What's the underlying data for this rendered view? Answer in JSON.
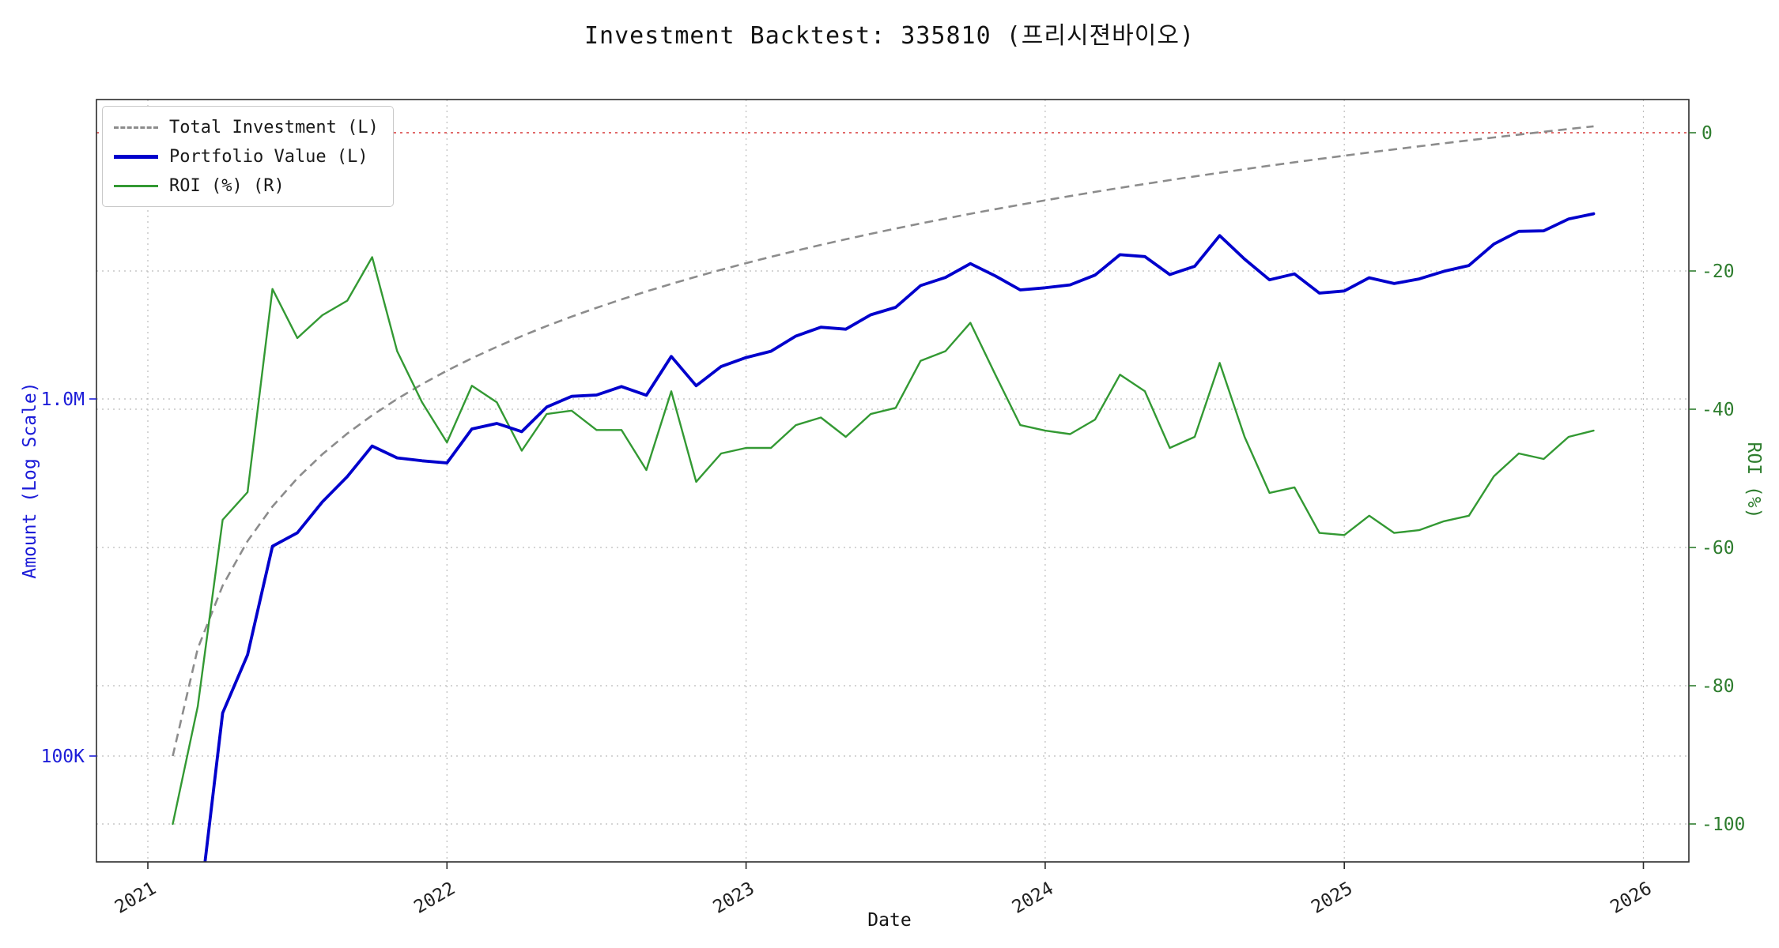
{
  "chart": {
    "title": "Investment Backtest: 335810 (프리시젼바이오)",
    "xlabel": "Date",
    "ylabel_left": "Amount (Log Scale)",
    "ylabel_right": "ROI (%)",
    "legend": [
      {
        "label": "Total Investment (L)",
        "style": "dashed",
        "color": "#8c8c8c"
      },
      {
        "label": "Portfolio Value (L)",
        "style": "solid",
        "color": "#0000cc"
      },
      {
        "label": "ROI (%) (R)",
        "style": "solid",
        "color": "#339933"
      }
    ],
    "x_ticks": [
      "2021",
      "2022",
      "2023",
      "2024",
      "2025",
      "2026"
    ],
    "amount_ticks": [
      {
        "label": "1.0M",
        "value": 1000000
      },
      {
        "label": "100K",
        "value": 100000
      }
    ],
    "roi_ticks": [
      {
        "label": "0",
        "value": 0
      },
      {
        "label": "-20",
        "value": -20
      },
      {
        "label": "-40",
        "value": -40
      },
      {
        "label": "-60",
        "value": -60
      },
      {
        "label": "-80",
        "value": -80
      },
      {
        "label": "-100",
        "value": -100
      }
    ],
    "colors": {
      "portfolio": "#0000cc",
      "investment": "#8c8c8c",
      "roi": "#339933",
      "zero_line": "#dd5555",
      "left_axis_text": "#1c1cd8",
      "right_axis_text": "#2e7d2e"
    }
  },
  "chart_data": {
    "type": "line",
    "title": "Investment Backtest: 335810 (프리시젼바이오)",
    "xlabel": "Date",
    "left_axis": {
      "label": "Amount (Log Scale)",
      "scale": "log",
      "min": 50000,
      "max": 6900000
    },
    "right_axis": {
      "label": "ROI (%)",
      "scale": "linear",
      "min": -105.5,
      "max": 4.8
    },
    "x_axis": {
      "unit": "month",
      "range_years": [
        2020.83,
        2026.15
      ]
    },
    "zero_roi_reference_line": 0,
    "grid": true,
    "legend_position": "upper-left",
    "months": [
      "2021-01",
      "2021-02",
      "2021-03",
      "2021-04",
      "2021-05",
      "2021-06",
      "2021-07",
      "2021-08",
      "2021-09",
      "2021-10",
      "2021-11",
      "2021-12",
      "2022-01",
      "2022-02",
      "2022-03",
      "2022-04",
      "2022-05",
      "2022-06",
      "2022-07",
      "2022-08",
      "2022-09",
      "2022-10",
      "2022-11",
      "2022-12",
      "2023-01",
      "2023-02",
      "2023-03",
      "2023-04",
      "2023-05",
      "2023-06",
      "2023-07",
      "2023-08",
      "2023-09",
      "2023-10",
      "2023-11",
      "2023-12",
      "2024-01",
      "2024-02",
      "2024-03",
      "2024-04",
      "2024-05",
      "2024-06",
      "2024-07",
      "2024-08",
      "2024-09",
      "2024-10",
      "2024-11",
      "2024-12",
      "2025-01",
      "2025-02",
      "2025-03",
      "2025-04",
      "2025-05",
      "2025-06",
      "2025-07",
      "2025-08",
      "2025-09",
      "2025-10"
    ],
    "series": [
      {
        "name": "Total Investment (L)",
        "axis": "left",
        "values": [
          100000,
          200000,
          300000,
          400000,
          500000,
          600000,
          700000,
          800000,
          900000,
          1000000,
          1100000,
          1200000,
          1300000,
          1400000,
          1500000,
          1600000,
          1700000,
          1800000,
          1900000,
          2000000,
          2100000,
          2200000,
          2300000,
          2400000,
          2500000,
          2600000,
          2700000,
          2800000,
          2900000,
          3000000,
          3100000,
          3200000,
          3300000,
          3400000,
          3500000,
          3600000,
          3700000,
          3800000,
          3900000,
          4000000,
          4100000,
          4200000,
          4300000,
          4400000,
          4500000,
          4600000,
          4700000,
          4800000,
          4900000,
          5000000,
          5100000,
          5200000,
          5300000,
          5400000,
          5500000,
          5600000,
          5700000,
          5800000
        ]
      },
      {
        "name": "Portfolio Value (L)",
        "axis": "left",
        "values": [
          0,
          34000,
          132000,
          192000,
          387000,
          422000,
          515000,
          606000,
          738000,
          684000,
          671000,
          662000,
          824000,
          854000,
          810000,
          949000,
          1017000,
          1026000,
          1083000,
          1024000,
          1315000,
          1089000,
          1233000,
          1306000,
          1360000,
          1500000,
          1588000,
          1568000,
          1720000,
          1806000,
          2077000,
          2189000,
          2393000,
          2210000,
          2020000,
          2048000,
          2087000,
          2223000,
          2535000,
          2504000,
          2230000,
          2352000,
          2868000,
          2464000,
          2156000,
          2240000,
          1979000,
          2006000,
          2185000,
          2105000,
          2168000,
          2278000,
          2364000,
          2716000,
          2948000,
          2957000,
          3192000,
          3300000
        ]
      },
      {
        "name": "ROI (%) (R)",
        "axis": "right",
        "values": [
          -100,
          -83,
          -56,
          -52,
          -22.6,
          -29.7,
          -26.4,
          -24.3,
          -18,
          -31.6,
          -39,
          -44.8,
          -36.6,
          -39,
          -46,
          -40.7,
          -40.2,
          -43,
          -43,
          -48.8,
          -37.4,
          -50.5,
          -46.4,
          -45.6,
          -45.6,
          -42.3,
          -41.2,
          -44,
          -40.7,
          -39.8,
          -33,
          -31.6,
          -27.5,
          -35,
          -42.3,
          -43.1,
          -43.6,
          -41.5,
          -35,
          -37.4,
          -45.6,
          -44,
          -33.3,
          -44,
          -52.1,
          -51.3,
          -57.9,
          -58.2,
          -55.4,
          -57.9,
          -57.5,
          -56.2,
          -55.4,
          -49.7,
          -46.4,
          -47.2,
          -44,
          -43.1
        ]
      }
    ]
  }
}
